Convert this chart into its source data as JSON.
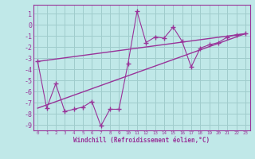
{
  "title": "",
  "xlabel": "Windchill (Refroidissement éolien,°C)",
  "bg_color": "#c0e8e8",
  "grid_color": "#a0cccc",
  "line_color": "#993399",
  "xlim": [
    -0.5,
    23.5
  ],
  "ylim": [
    -9.5,
    1.8
  ],
  "yticks": [
    1,
    0,
    -1,
    -2,
    -3,
    -4,
    -5,
    -6,
    -7,
    -8,
    -9
  ],
  "xticks": [
    0,
    1,
    2,
    3,
    4,
    5,
    6,
    7,
    8,
    9,
    10,
    11,
    12,
    13,
    14,
    15,
    16,
    17,
    18,
    19,
    20,
    21,
    22,
    23
  ],
  "data_line_x": [
    0,
    1,
    2,
    3,
    4,
    5,
    6,
    7,
    8,
    9,
    10,
    11,
    12,
    13,
    14,
    15,
    16,
    17,
    18,
    19,
    20,
    21,
    22,
    23
  ],
  "data_line_y": [
    -3.3,
    -7.5,
    -5.3,
    -7.8,
    -7.6,
    -7.4,
    -6.9,
    -9.1,
    -7.6,
    -7.6,
    -3.5,
    1.2,
    -1.6,
    -1.1,
    -1.2,
    -0.2,
    -1.5,
    -3.8,
    -2.1,
    -1.8,
    -1.6,
    -1.1,
    -0.9,
    -0.8
  ],
  "reg_line1_x": [
    0,
    23
  ],
  "reg_line1_y": [
    -3.3,
    -0.8
  ],
  "reg_line2_x": [
    0,
    23
  ],
  "reg_line2_y": [
    -7.5,
    -0.8
  ]
}
